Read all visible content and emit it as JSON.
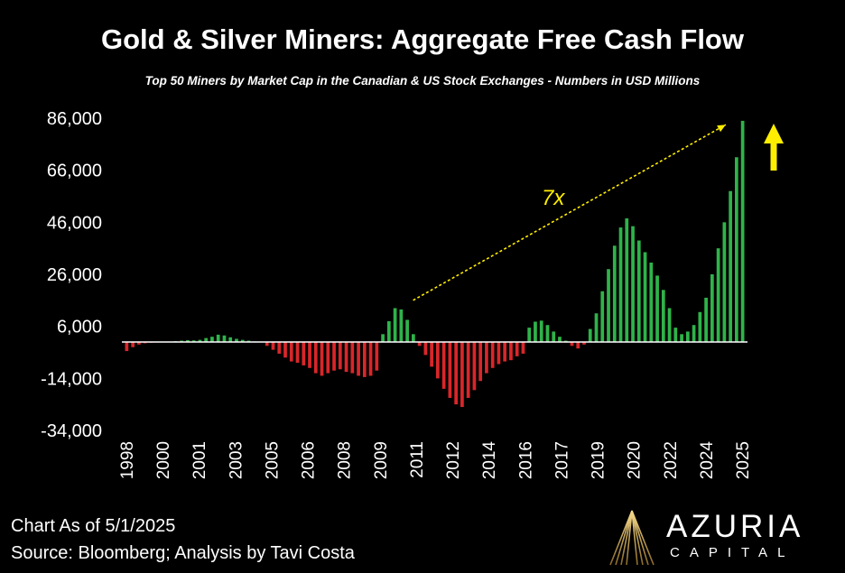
{
  "header": {
    "title": "Gold & Silver Miners: Aggregate Free Cash Flow",
    "subtitle": "Top 50 Miners by Market Cap in the Canadian & US Stock Exchanges - Numbers in USD Millions"
  },
  "footer": {
    "line1": "Chart As of 5/1/2025",
    "line2": "Source: Bloomberg; Analysis by Tavi Costa"
  },
  "logo": {
    "name": "AZURIA",
    "tagline": "CAPITAL"
  },
  "colors": {
    "positive": "#2fb34a",
    "negative": "#d9262a",
    "arrow": "#ffee00",
    "axis": "#ffffff"
  },
  "chart_data": {
    "type": "bar",
    "title": "Gold & Silver Miners: Aggregate Free Cash Flow",
    "subtitle": "Top 50 Miners by Market Cap in the Canadian & US Stock Exchanges - Numbers in USD Millions",
    "ylim": [
      -34000,
      86000
    ],
    "y_ticks": [
      86000,
      66000,
      46000,
      26000,
      6000,
      -14000,
      -34000
    ],
    "y_tick_labels": [
      "86,000",
      "66,000",
      "46,000",
      "26,000",
      "6,000",
      "-14,000",
      "-34,000"
    ],
    "x_tick_labels": [
      "1998",
      "2000",
      "2001",
      "2003",
      "2005",
      "2006",
      "2008",
      "2009",
      "2011",
      "2012",
      "2014",
      "2016",
      "2017",
      "2019",
      "2020",
      "2022",
      "2024",
      "2025"
    ],
    "grid": false,
    "legend": "none",
    "baseline": 0,
    "values": [
      -3500,
      -2000,
      -1000,
      -500,
      -300,
      -200,
      -100,
      0,
      300,
      500,
      700,
      600,
      800,
      1500,
      2000,
      2800,
      2500,
      1800,
      1200,
      800,
      500,
      200,
      0,
      -1500,
      -3000,
      -4500,
      -6000,
      -7500,
      -8000,
      -9000,
      -10000,
      -12000,
      -13000,
      -12000,
      -11000,
      -10500,
      -11500,
      -12000,
      -13000,
      -13500,
      -13000,
      -11000,
      3000,
      8000,
      13000,
      12500,
      8500,
      3000,
      -1500,
      -5000,
      -9500,
      -14000,
      -18000,
      -21500,
      -24000,
      -25000,
      -21500,
      -18500,
      -15000,
      -12000,
      -10000,
      -8500,
      -7500,
      -7000,
      -5500,
      -4500,
      5500,
      7800,
      8200,
      6500,
      4000,
      2000,
      500,
      -1500,
      -2500,
      -1000,
      5000,
      11000,
      19500,
      28000,
      37000,
      44000,
      47500,
      44500,
      39000,
      34500,
      30500,
      25500,
      20000,
      13000,
      5500,
      3000,
      4000,
      6500,
      11500,
      17000,
      26000,
      36000,
      46000,
      58000,
      71000,
      85000
    ],
    "annotations": [
      {
        "text": "7x",
        "type": "dashed-arrow",
        "from_index": 44,
        "from_value": 16000,
        "to_index": 100,
        "to_value": 83500
      },
      {
        "text": "",
        "type": "up-arrow",
        "color": "yellow"
      }
    ]
  }
}
